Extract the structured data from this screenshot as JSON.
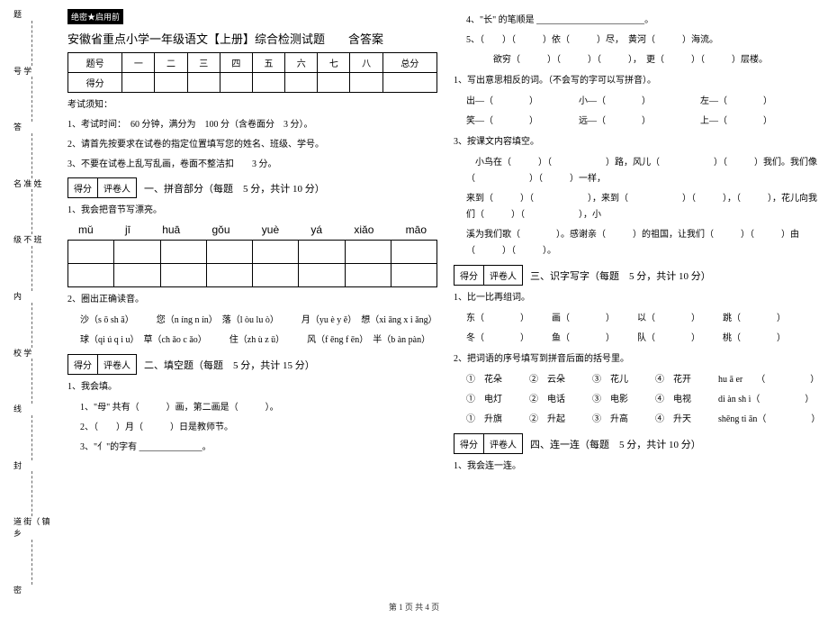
{
  "side": {
    "labels": [
      "题",
      "号 学",
      "答",
      "名 准 姓",
      "级 不 班",
      "内",
      "校 学",
      "线",
      "封",
      "道 街（ 镇 乡",
      "密"
    ]
  },
  "header": {
    "badge": "绝密★启用前",
    "title": "安徽省重点小学一年级语文【上册】综合检测试题　　含答案"
  },
  "score_table": {
    "headers": [
      "题号",
      "一",
      "二",
      "三",
      "四",
      "五",
      "六",
      "七",
      "八",
      "总分"
    ],
    "row_label": "得分"
  },
  "notice": {
    "heading": "考试须知：",
    "items": [
      "1、考试时间：　60 分钟，满分为　100 分（含卷面分　3 分）。",
      "2、请首先按要求在试卷的指定位置填写您的姓名、班级、学号。",
      "3、不要在试卷上乱写乱画，卷面不整洁扣　　3 分。"
    ]
  },
  "sections": {
    "s1": {
      "box_l": "得分",
      "box_r": "评卷人",
      "title": "一、拼音部分（每题　5 分，共计 10 分）"
    },
    "s2": {
      "box_l": "得分",
      "box_r": "评卷人",
      "title": "二、填空题（每题　5 分，共计 15 分）"
    },
    "s3": {
      "box_l": "得分",
      "box_r": "评卷人",
      "title": "三、识字写字（每题　5 分，共计 10 分）"
    },
    "s4": {
      "box_l": "得分",
      "box_r": "评卷人",
      "title": "四、连一连（每题　5 分，共计 10 分）"
    }
  },
  "q1": {
    "prompt": "1、我会把音节写漂亮。",
    "pinyin": [
      "mǔ",
      "jī",
      "huā",
      "gǒu",
      "yuè",
      "yá",
      "xiǎo",
      "māo"
    ]
  },
  "q2": {
    "prompt": "2、圈出正确读音。",
    "line1": "沙（s ō sh ā）　　　您（n íng n ín）　落（l òu lu ò）　　　月（yu è y ě）　想（xi āng x i ǎng）",
    "line2": "球（qi ú q i u）　草（ch ǎo c ǎo）　　　住（zh ù z ǔ）　　　风（f ēng f ēn）　半（b àn pàn）"
  },
  "fill": {
    "prompt": "1、我会填。",
    "i1": "1、\"母\" 共有（　　　）画，第二画是（　　　）。",
    "i2": "2、（　　）月（　　　）日是教师节。",
    "i3": "3、\"亻\"的字有 ______________。"
  },
  "right": {
    "r4": "4、\"长\" 的笔顺是 ________________________。",
    "r5": "5、（　　）（　　　）依（　　　）尽，　黄河（　　　）海流。",
    "r5b": "　　　欲穷（　　　）（　　　）（　　　），　更（　　　）（　　　）层楼。",
    "opp_title": "1、写出意思相反的词。（不会写的字可以写拼音）。",
    "opp1": "出—（　　　　）　　　　　小—（　　　　）　　　　　　左—（　　　　）",
    "opp2": "笑—（　　　　）　　　　　远—（　　　　）　　　　　　上—（　　　　）",
    "text_title": "3、按课文内容填空。",
    "text1": "　小鸟在（　　　）（　　　　　　）路，风儿（　　　　　　）（　　　）我们。我们像（　　　　　　）（　　　）一样，",
    "text2": "来到（　　　）（　　　　　　），来到（　　　　　　）（　　　），（　　　），花儿向我们（　　　）（　　　　　　），小",
    "text3": "溪为我们歌（　　　　）。感谢亲（　　　）的祖国，让我们（　　　）（　　　）由（　　　）（　　　）。",
    "zuci_title": "1、比一比再组词。",
    "zuci1": "东（　　　　）　　　画（　　　　）　　　以（　　　　）　　　跳（　　　　）",
    "zuci2": "冬（　　　　）　　　鱼（　　　　）　　　队（　　　　）　　　桃（　　　　）",
    "match_title": "2、把词语的序号填写到拼音后面的括号里。",
    "match1": "①　花朵　　　②　云朵　　　③　花儿　　　④　花开　　　hu ā er　　（　　　　　）",
    "match2": "①　电灯　　　②　电话　　　③　电影　　　④　电视　　　di àn sh ì（　　　　　）",
    "match3": "①　升旗　　　②　升起　　　③　升高　　　④　升天　　　shēng ti ān（　　　　　）",
    "lian": "1、我会连一连。"
  },
  "footer": "第 1 页  共 4 页"
}
